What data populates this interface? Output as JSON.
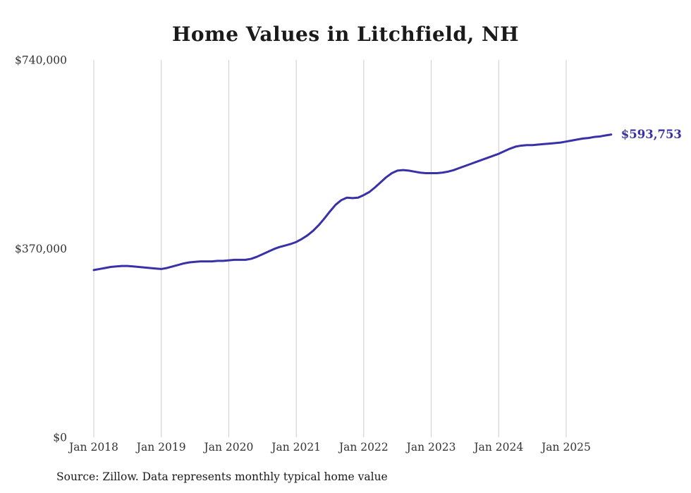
{
  "title": "Home Values in Litchfield, NH",
  "source_note": "Source: Zillow. Data represents monthly typical home value",
  "chart_data": {
    "type": "line",
    "title": "Home Values in Litchfield, NH",
    "series_name": "Monthly typical home value",
    "end_label": "$593,753",
    "final_value": 593753,
    "ylim": [
      0,
      740000
    ],
    "y_ticks": [
      {
        "value": 0,
        "label": "$0"
      },
      {
        "value": 370000,
        "label": "$370,000"
      },
      {
        "value": 740000,
        "label": "$740,000"
      }
    ],
    "x_ticks": [
      {
        "month_index": 0,
        "label": "Jan 2018"
      },
      {
        "month_index": 12,
        "label": "Jan 2019"
      },
      {
        "month_index": 24,
        "label": "Jan 2020"
      },
      {
        "month_index": 36,
        "label": "Jan 2021"
      },
      {
        "month_index": 48,
        "label": "Jan 2022"
      },
      {
        "month_index": 60,
        "label": "Jan 2023"
      },
      {
        "month_index": 72,
        "label": "Jan 2024"
      },
      {
        "month_index": 84,
        "label": "Jan 2025"
      }
    ],
    "grid": "vertical-only",
    "legend": "none",
    "line_color": "#3831a8",
    "grid_color": "#cccccc",
    "x": [
      "2018-01",
      "2018-02",
      "2018-03",
      "2018-04",
      "2018-05",
      "2018-06",
      "2018-07",
      "2018-08",
      "2018-09",
      "2018-10",
      "2018-11",
      "2018-12",
      "2019-01",
      "2019-02",
      "2019-03",
      "2019-04",
      "2019-05",
      "2019-06",
      "2019-07",
      "2019-08",
      "2019-09",
      "2019-10",
      "2019-11",
      "2019-12",
      "2020-01",
      "2020-02",
      "2020-03",
      "2020-04",
      "2020-05",
      "2020-06",
      "2020-07",
      "2020-08",
      "2020-09",
      "2020-10",
      "2020-11",
      "2020-12",
      "2021-01",
      "2021-02",
      "2021-03",
      "2021-04",
      "2021-05",
      "2021-06",
      "2021-07",
      "2021-08",
      "2021-09",
      "2021-10",
      "2021-11",
      "2021-12",
      "2022-01",
      "2022-02",
      "2022-03",
      "2022-04",
      "2022-05",
      "2022-06",
      "2022-07",
      "2022-08",
      "2022-09",
      "2022-10",
      "2022-11",
      "2022-12",
      "2023-01",
      "2023-02",
      "2023-03",
      "2023-04",
      "2023-05",
      "2023-06",
      "2023-07",
      "2023-08",
      "2023-09",
      "2023-10",
      "2023-11",
      "2023-12",
      "2024-01",
      "2024-02",
      "2024-03",
      "2024-04",
      "2024-05",
      "2024-06",
      "2024-07",
      "2024-08",
      "2024-09",
      "2024-10",
      "2024-11",
      "2024-12",
      "2025-01",
      "2025-02",
      "2025-03",
      "2025-04",
      "2025-05",
      "2025-06",
      "2025-07",
      "2025-08",
      "2025-09"
    ],
    "values": [
      328000,
      330000,
      332000,
      334000,
      335000,
      336000,
      336000,
      335000,
      334000,
      333000,
      332000,
      331000,
      330000,
      332000,
      335000,
      338000,
      341000,
      343000,
      344000,
      345000,
      345000,
      345000,
      346000,
      346000,
      347000,
      348000,
      348000,
      348000,
      350000,
      354000,
      359000,
      364000,
      369000,
      373000,
      376000,
      379000,
      383000,
      389000,
      396000,
      405000,
      416000,
      429000,
      443000,
      456000,
      465000,
      470000,
      469000,
      470000,
      475000,
      481000,
      490000,
      500000,
      510000,
      518000,
      523000,
      524000,
      523000,
      521000,
      519000,
      518000,
      518000,
      518000,
      519000,
      521000,
      524000,
      528000,
      532000,
      536000,
      540000,
      544000,
      548000,
      552000,
      556000,
      561000,
      566000,
      570000,
      572000,
      573000,
      573000,
      574000,
      575000,
      576000,
      577000,
      578000,
      580000,
      582000,
      584000,
      586000,
      587000,
      589000,
      590000,
      592000,
      593753
    ]
  }
}
